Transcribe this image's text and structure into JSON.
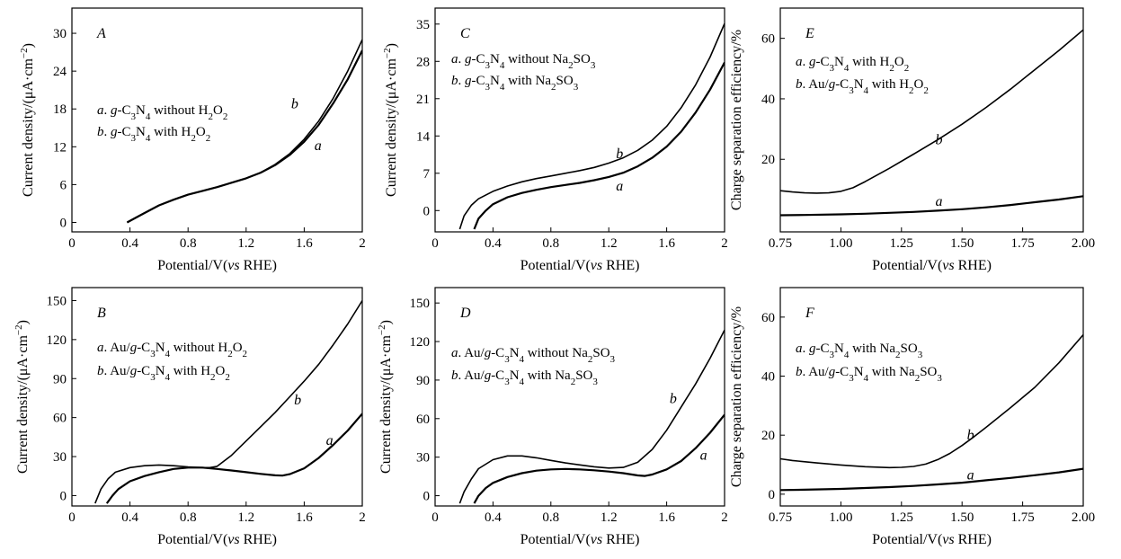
{
  "chart_data": [
    {
      "panel": "A",
      "type": "line",
      "xlabel": "Potential/V(vs RHE)",
      "ylabel": "Current density/(μA·cm⁻²)",
      "xlim": [
        0.0,
        2.0
      ],
      "ylim": [
        -1.5,
        34
      ],
      "xticks": [
        0.0,
        0.4,
        0.8,
        1.2,
        1.6,
        2.0
      ],
      "yticks": [
        0,
        6,
        12,
        18,
        24,
        30
      ],
      "legend": [
        {
          "letter": "a.",
          "text": "g-C₃N₄ without H₂O₂"
        },
        {
          "letter": "b.",
          "text": "g-C₃N₄ with H₂O₂"
        }
      ],
      "series": [
        {
          "name": "a",
          "width": 2.2,
          "x": [
            0.38,
            0.42,
            0.5,
            0.6,
            0.7,
            0.8,
            0.9,
            1.0,
            1.1,
            1.2,
            1.3,
            1.4,
            1.5,
            1.6,
            1.7,
            1.8,
            1.9,
            2.0
          ],
          "y": [
            0,
            0.5,
            1.5,
            2.7,
            3.6,
            4.4,
            5.0,
            5.6,
            6.3,
            7.0,
            7.9,
            9.1,
            10.7,
            12.8,
            15.5,
            18.9,
            22.7,
            27.3
          ]
        },
        {
          "name": "b",
          "width": 1.6,
          "x": [
            0.38,
            0.42,
            0.5,
            0.6,
            0.7,
            0.8,
            0.9,
            1.0,
            1.1,
            1.2,
            1.3,
            1.4,
            1.5,
            1.6,
            1.7,
            1.8,
            1.9,
            2.0
          ],
          "y": [
            0,
            0.5,
            1.5,
            2.7,
            3.6,
            4.4,
            5.0,
            5.6,
            6.3,
            7.0,
            7.9,
            9.2,
            10.9,
            13.2,
            16.1,
            19.7,
            24.0,
            29.0
          ]
        }
      ],
      "curve_labels": [
        {
          "text": "b",
          "x": 1.51,
          "y": 18.1
        },
        {
          "text": "a",
          "x": 1.67,
          "y": 11.5
        }
      ]
    },
    {
      "panel": "C",
      "type": "line",
      "xlabel": "Potential/V(vs RHE)",
      "ylabel": "Current density/(μA·cm⁻²)",
      "xlim": [
        0.0,
        2.0
      ],
      "ylim": [
        -4,
        38
      ],
      "xticks": [
        0.0,
        0.4,
        0.8,
        1.2,
        1.6,
        2.0
      ],
      "yticks": [
        0,
        7,
        14,
        21,
        28,
        35
      ],
      "legend": [
        {
          "letter": "a.",
          "text": "g-C₃N₄ without Na₂SO₃"
        },
        {
          "letter": "b.",
          "text": "g-C₃N₄ with Na₂SO₃"
        }
      ],
      "series": [
        {
          "name": "a",
          "width": 2.2,
          "x": [
            0.27,
            0.3,
            0.35,
            0.4,
            0.5,
            0.6,
            0.7,
            0.8,
            0.9,
            1.0,
            1.1,
            1.2,
            1.3,
            1.4,
            1.5,
            1.6,
            1.7,
            1.8,
            1.9,
            2.0
          ],
          "y": [
            -3.5,
            -1.5,
            0,
            1.2,
            2.5,
            3.3,
            3.9,
            4.4,
            4.8,
            5.2,
            5.7,
            6.3,
            7.1,
            8.3,
            9.9,
            12.0,
            14.8,
            18.4,
            22.7,
            27.8
          ]
        },
        {
          "name": "b",
          "width": 1.6,
          "x": [
            0.17,
            0.2,
            0.25,
            0.3,
            0.4,
            0.5,
            0.6,
            0.7,
            0.8,
            0.9,
            1.0,
            1.1,
            1.2,
            1.3,
            1.4,
            1.5,
            1.6,
            1.7,
            1.8,
            1.9,
            2.0
          ],
          "y": [
            -3.5,
            -1.0,
            1.0,
            2.2,
            3.6,
            4.6,
            5.4,
            6.0,
            6.5,
            7.0,
            7.5,
            8.1,
            8.9,
            9.9,
            11.3,
            13.2,
            15.8,
            19.3,
            23.6,
            28.8,
            35.1
          ]
        }
      ],
      "curve_labels": [
        {
          "text": "b",
          "x": 1.25,
          "y": 9.8
        },
        {
          "text": "a",
          "x": 1.25,
          "y": 3.8
        }
      ]
    },
    {
      "panel": "E",
      "type": "line",
      "xlabel": "Potential/V(vs RHE)",
      "ylabel": "Charge separation efficiency/%",
      "xlim": [
        0.75,
        2.0
      ],
      "ylim": [
        -4,
        70
      ],
      "xticks": [
        0.75,
        1.0,
        1.25,
        1.5,
        1.75,
        2.0
      ],
      "xtick_labels": [
        "0.75",
        "1.00",
        "1.25",
        "1.50",
        "1.75",
        "2.00"
      ],
      "yticks": [
        20,
        40,
        60
      ],
      "legend": [
        {
          "letter": "a.",
          "text": "g-C₃N₄ with H₂O₂"
        },
        {
          "letter": "b.",
          "text": "Au/g-C₃N₄ with H₂O₂"
        }
      ],
      "series": [
        {
          "name": "a",
          "width": 2.2,
          "x": [
            0.75,
            0.85,
            1.0,
            1.1,
            1.2,
            1.3,
            1.4,
            1.5,
            1.6,
            1.7,
            1.8,
            1.9,
            2.0
          ],
          "y": [
            1.5,
            1.6,
            1.8,
            2.0,
            2.3,
            2.6,
            3.0,
            3.5,
            4.1,
            4.9,
            5.8,
            6.7,
            7.8
          ]
        },
        {
          "name": "b",
          "width": 1.6,
          "x": [
            0.75,
            0.8,
            0.85,
            0.9,
            0.95,
            1.0,
            1.05,
            1.1,
            1.2,
            1.3,
            1.4,
            1.5,
            1.6,
            1.7,
            1.8,
            1.9,
            2.0
          ],
          "y": [
            9.6,
            9.2,
            8.9,
            8.8,
            8.9,
            9.4,
            10.6,
            12.6,
            17.0,
            21.7,
            26.5,
            31.6,
            37.2,
            43.2,
            49.6,
            56.0,
            62.8
          ]
        }
      ],
      "curve_labels": [
        {
          "text": "b",
          "x": 1.39,
          "y": 25.0
        },
        {
          "text": "a",
          "x": 1.39,
          "y": 4.6
        }
      ]
    },
    {
      "panel": "B",
      "type": "line",
      "xlabel": "Potential/V(vs RHE)",
      "ylabel": "Current density/(μA·cm⁻²)",
      "xlim": [
        0.0,
        2.0
      ],
      "ylim": [
        -8,
        160
      ],
      "xticks": [
        0.0,
        0.4,
        0.8,
        1.2,
        1.6,
        2.0
      ],
      "yticks": [
        0,
        30,
        60,
        90,
        120,
        150
      ],
      "legend": [
        {
          "letter": "a.",
          "text": "Au/g-C₃N₄ without H₂O₂"
        },
        {
          "letter": "b.",
          "text": "Au/g-C₃N₄ with H₂O₂"
        }
      ],
      "series": [
        {
          "name": "a",
          "width": 2.2,
          "x": [
            0.24,
            0.28,
            0.32,
            0.4,
            0.5,
            0.6,
            0.7,
            0.8,
            0.9,
            1.0,
            1.1,
            1.2,
            1.3,
            1.4,
            1.45,
            1.5,
            1.6,
            1.7,
            1.8,
            1.9,
            2.0
          ],
          "y": [
            -6,
            0,
            5,
            11,
            15,
            18,
            20.5,
            21.5,
            21.5,
            20.5,
            19.3,
            18,
            16.7,
            15.6,
            15.4,
            16.5,
            21,
            29,
            39,
            50,
            63
          ]
        },
        {
          "name": "b",
          "width": 1.6,
          "x": [
            0.16,
            0.2,
            0.25,
            0.3,
            0.4,
            0.5,
            0.6,
            0.7,
            0.8,
            0.9,
            0.95,
            1.0,
            1.1,
            1.2,
            1.3,
            1.4,
            1.5,
            1.6,
            1.7,
            1.8,
            1.9,
            2.0
          ],
          "y": [
            -6,
            5,
            13,
            18,
            21.5,
            23,
            23.5,
            23,
            22,
            21.5,
            21.5,
            22.5,
            31,
            42,
            53,
            64,
            76,
            88,
            101,
            116,
            132,
            150
          ]
        }
      ],
      "curve_labels": [
        {
          "text": "b",
          "x": 1.53,
          "y": 70
        },
        {
          "text": "a",
          "x": 1.75,
          "y": 39
        }
      ]
    },
    {
      "panel": "D",
      "type": "line",
      "xlabel": "Potential/V(vs RHE)",
      "ylabel": "Current density/(μA·cm⁻²)",
      "xlim": [
        0.0,
        2.0
      ],
      "ylim": [
        -8,
        162
      ],
      "xticks": [
        0.0,
        0.4,
        0.8,
        1.2,
        1.6,
        2.0
      ],
      "yticks": [
        0,
        30,
        60,
        90,
        120,
        150
      ],
      "legend": [
        {
          "letter": "a.",
          "text": "Au/g-C₃N₄ without Na₂SO₃"
        },
        {
          "letter": "b.",
          "text": "Au/g-C₃N₄ with Na₂SO₃"
        }
      ],
      "series": [
        {
          "name": "a",
          "width": 2.2,
          "x": [
            0.27,
            0.3,
            0.35,
            0.4,
            0.5,
            0.6,
            0.7,
            0.8,
            0.9,
            1.0,
            1.1,
            1.2,
            1.3,
            1.4,
            1.45,
            1.5,
            1.6,
            1.7,
            1.8,
            1.9,
            2.0
          ],
          "y": [
            -6,
            0,
            6,
            10,
            14.5,
            17.5,
            19.5,
            20.5,
            20.8,
            20.5,
            19.8,
            18.8,
            17.5,
            15.8,
            15.4,
            16.5,
            20.5,
            27,
            37,
            49,
            63
          ]
        },
        {
          "name": "b",
          "width": 1.6,
          "x": [
            0.17,
            0.2,
            0.25,
            0.3,
            0.4,
            0.5,
            0.6,
            0.7,
            0.8,
            0.9,
            1.0,
            1.1,
            1.2,
            1.3,
            1.4,
            1.5,
            1.6,
            1.7,
            1.8,
            1.9,
            2.0
          ],
          "y": [
            -6,
            3,
            13,
            21,
            28,
            31,
            31,
            29.5,
            27.5,
            25.5,
            24,
            22.5,
            21.5,
            22,
            26,
            36,
            51,
            69,
            87,
            107,
            129
          ]
        }
      ],
      "curve_labels": [
        {
          "text": "b",
          "x": 1.62,
          "y": 72
        },
        {
          "text": "a",
          "x": 1.83,
          "y": 28
        }
      ]
    },
    {
      "panel": "F",
      "type": "line",
      "xlabel": "Potential/V(vs RHE)",
      "ylabel": "Charge separation efficiency/%",
      "xlim": [
        0.75,
        2.0
      ],
      "ylim": [
        -4,
        70
      ],
      "xticks": [
        0.75,
        1.0,
        1.25,
        1.5,
        1.75,
        2.0
      ],
      "xtick_labels": [
        "0.75",
        "1.00",
        "1.25",
        "1.50",
        "1.75",
        "2.00"
      ],
      "yticks": [
        0,
        20,
        40,
        60
      ],
      "legend": [
        {
          "letter": "a.",
          "text": "g-C₃N₄ with Na₂SO₃"
        },
        {
          "letter": "b.",
          "text": "Au/g-C₃N₄ with Na₂SO₃"
        }
      ],
      "series": [
        {
          "name": "a",
          "width": 2.2,
          "x": [
            0.75,
            0.85,
            1.0,
            1.1,
            1.2,
            1.3,
            1.4,
            1.5,
            1.6,
            1.7,
            1.8,
            1.9,
            2.0
          ],
          "y": [
            1.4,
            1.5,
            1.8,
            2.1,
            2.4,
            2.8,
            3.3,
            3.9,
            4.7,
            5.5,
            6.4,
            7.4,
            8.6
          ]
        },
        {
          "name": "b",
          "width": 1.6,
          "x": [
            0.75,
            0.8,
            0.9,
            1.0,
            1.1,
            1.2,
            1.25,
            1.3,
            1.35,
            1.4,
            1.45,
            1.5,
            1.55,
            1.6,
            1.7,
            1.8,
            1.9,
            2.0
          ],
          "y": [
            12.0,
            11.4,
            10.6,
            9.9,
            9.3,
            9.0,
            9.1,
            9.4,
            10.2,
            11.7,
            13.8,
            16.5,
            19.5,
            22.7,
            29.3,
            36.2,
            44.5,
            54.0
          ]
        }
      ],
      "curve_labels": [
        {
          "text": "b",
          "x": 1.52,
          "y": 18.5
        },
        {
          "text": "a",
          "x": 1.52,
          "y": 5.0
        }
      ]
    }
  ]
}
